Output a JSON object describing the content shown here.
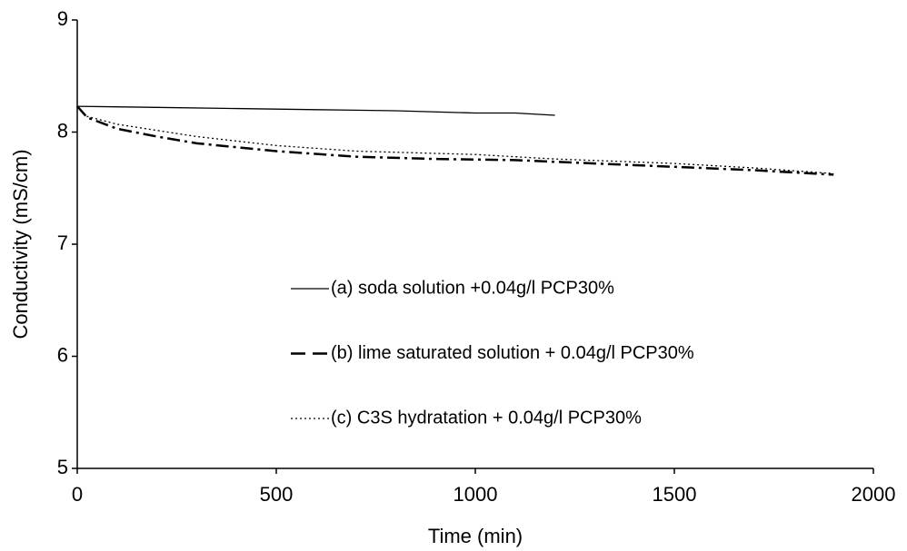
{
  "chart_data": {
    "type": "line",
    "x_label": "Time (min)",
    "y_label": "Conductivity (mS/cm)",
    "xlim": [
      0,
      2000
    ],
    "xticks": [
      0,
      500,
      1000,
      1500,
      2000
    ],
    "ylim": [
      5,
      9
    ],
    "yticks": [
      5,
      6,
      7,
      8,
      9
    ],
    "grid": false,
    "legend": "center",
    "series": [
      {
        "name": "(a) soda solution +0.04g/l PCP30%",
        "color": "#000000",
        "style": "solid",
        "x": [
          0,
          200,
          400,
          600,
          800,
          1000,
          1100,
          1200
        ],
        "values": [
          8.23,
          8.22,
          8.21,
          8.2,
          8.19,
          8.17,
          8.17,
          8.15
        ]
      },
      {
        "name": "(b) lime saturated solution + 0.04g/l PCP30%",
        "color": "#000000",
        "style": "dashdot",
        "x": [
          0,
          25,
          100,
          200,
          300,
          500,
          700,
          900,
          1100,
          1300,
          1500,
          1700,
          1900
        ],
        "values": [
          8.23,
          8.13,
          8.03,
          7.96,
          7.9,
          7.83,
          7.78,
          7.76,
          7.75,
          7.72,
          7.69,
          7.66,
          7.62
        ]
      },
      {
        "name": "(c) C3S hydratation + 0.04g/l PCP30%",
        "color": "#000000",
        "style": "dotted",
        "x": [
          0,
          25,
          100,
          300,
          500,
          700,
          900,
          1000,
          1200,
          1500,
          1700,
          1900
        ],
        "values": [
          8.23,
          8.14,
          8.07,
          7.96,
          7.88,
          7.83,
          7.81,
          7.8,
          7.76,
          7.72,
          7.68,
          7.63
        ]
      }
    ]
  }
}
